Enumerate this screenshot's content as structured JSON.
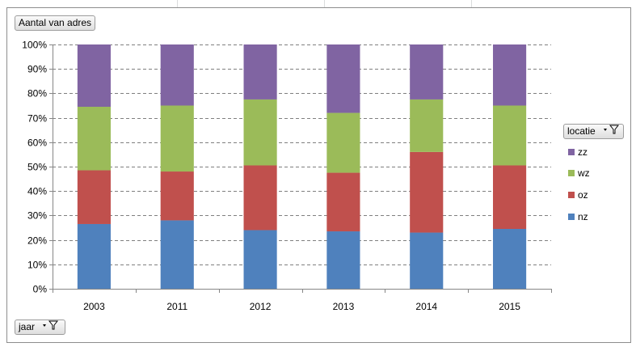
{
  "value_field_button": {
    "label": "Aantal van adres"
  },
  "legend": {
    "title": "locatie",
    "items": [
      {
        "label": "zz",
        "color": "#8064a2"
      },
      {
        "label": "wz",
        "color": "#9bbb59"
      },
      {
        "label": "oz",
        "color": "#c0504d"
      },
      {
        "label": "nz",
        "color": "#4f81bd"
      }
    ]
  },
  "axis_field_button": {
    "label": "jaar"
  },
  "chart_data": {
    "type": "bar",
    "stacked": "percent",
    "categories": [
      "2003",
      "2011",
      "2012",
      "2013",
      "2014",
      "2015"
    ],
    "series": [
      {
        "name": "nz",
        "color": "#4f81bd",
        "values": [
          26.5,
          28,
          24,
          23.5,
          23,
          24.5
        ]
      },
      {
        "name": "oz",
        "color": "#c0504d",
        "values": [
          22,
          20,
          26.5,
          24,
          33,
          26
        ]
      },
      {
        "name": "wz",
        "color": "#9bbb59",
        "values": [
          26,
          27,
          27,
          24.5,
          21.5,
          24.5
        ]
      },
      {
        "name": "zz",
        "color": "#8064a2",
        "values": [
          25.5,
          25,
          22.5,
          28,
          22.5,
          25
        ]
      }
    ],
    "ylim": [
      0,
      100
    ],
    "yticks": [
      "0%",
      "10%",
      "20%",
      "30%",
      "40%",
      "50%",
      "60%",
      "70%",
      "80%",
      "90%",
      "100%"
    ],
    "grid": true,
    "legend_position": "right"
  }
}
